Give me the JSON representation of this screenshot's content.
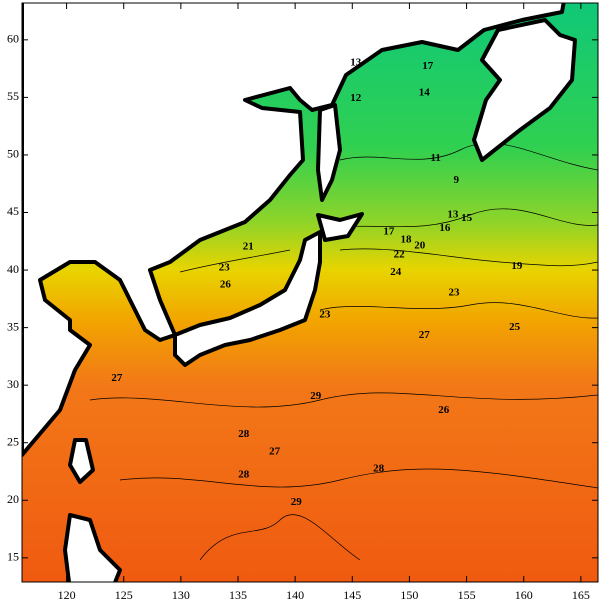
{
  "map": {
    "xlim": [
      116.1,
      166.5
    ],
    "ylim": [
      12.9,
      63.2
    ],
    "xticks": [
      120,
      125,
      130,
      135,
      140,
      145,
      150,
      155,
      160,
      165
    ],
    "yticks": [
      15,
      20,
      25,
      30,
      35,
      40,
      45,
      50,
      55,
      60
    ],
    "contour_labels": [
      {
        "value": 13,
        "lon": 145.3,
        "lat": 58.0
      },
      {
        "value": 17,
        "lon": 151.6,
        "lat": 57.7
      },
      {
        "value": 12,
        "lon": 145.3,
        "lat": 54.9
      },
      {
        "value": 14,
        "lon": 151.3,
        "lat": 55.4
      },
      {
        "value": 11,
        "lon": 152.3,
        "lat": 49.7
      },
      {
        "value": 9,
        "lon": 154.1,
        "lat": 47.8
      },
      {
        "value": 13,
        "lon": 153.8,
        "lat": 44.8
      },
      {
        "value": 15,
        "lon": 155.0,
        "lat": 44.5
      },
      {
        "value": 16,
        "lon": 153.1,
        "lat": 43.6
      },
      {
        "value": 17,
        "lon": 148.2,
        "lat": 43.3
      },
      {
        "value": 18,
        "lon": 149.7,
        "lat": 42.6
      },
      {
        "value": 20,
        "lon": 150.9,
        "lat": 42.1
      },
      {
        "value": 19,
        "lon": 159.4,
        "lat": 40.3
      },
      {
        "value": 21,
        "lon": 135.9,
        "lat": 42.0
      },
      {
        "value": 22,
        "lon": 149.1,
        "lat": 41.3
      },
      {
        "value": 24,
        "lon": 148.8,
        "lat": 39.8
      },
      {
        "value": 23,
        "lon": 133.8,
        "lat": 40.2
      },
      {
        "value": 26,
        "lon": 133.9,
        "lat": 38.7
      },
      {
        "value": 23,
        "lon": 153.9,
        "lat": 38.0
      },
      {
        "value": 25,
        "lon": 159.2,
        "lat": 35.0
      },
      {
        "value": 27,
        "lon": 151.3,
        "lat": 34.3
      },
      {
        "value": 23,
        "lon": 142.6,
        "lat": 36.1
      },
      {
        "value": 27,
        "lon": 124.4,
        "lat": 30.6
      },
      {
        "value": 29,
        "lon": 141.8,
        "lat": 29.0
      },
      {
        "value": 26,
        "lon": 153.0,
        "lat": 27.8
      },
      {
        "value": 28,
        "lon": 135.5,
        "lat": 25.7
      },
      {
        "value": 27,
        "lon": 138.2,
        "lat": 24.2
      },
      {
        "value": 28,
        "lon": 147.3,
        "lat": 22.7
      },
      {
        "value": 28,
        "lon": 135.5,
        "lat": 22.2
      },
      {
        "value": 29,
        "lon": 140.1,
        "lat": 19.8
      }
    ]
  }
}
